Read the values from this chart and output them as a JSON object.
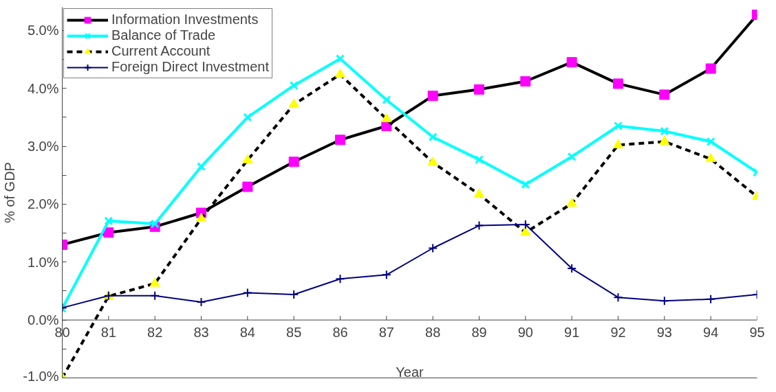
{
  "chart_data": {
    "type": "line",
    "xlabel": "Year",
    "ylabel": "% of GDP",
    "x": [
      80,
      81,
      82,
      83,
      84,
      85,
      86,
      87,
      88,
      89,
      90,
      91,
      92,
      93,
      94,
      95
    ],
    "xlim": [
      80,
      95
    ],
    "xticks": [
      {
        "value": 80,
        "label": "80"
      },
      {
        "value": 81,
        "label": "81"
      },
      {
        "value": 82,
        "label": "82"
      },
      {
        "value": 83,
        "label": "83"
      },
      {
        "value": 84,
        "label": "84"
      },
      {
        "value": 85,
        "label": "85"
      },
      {
        "value": 86,
        "label": "86"
      },
      {
        "value": 87,
        "label": "87"
      },
      {
        "value": 88,
        "label": "88"
      },
      {
        "value": 89,
        "label": "89"
      },
      {
        "value": 90,
        "label": "90"
      },
      {
        "value": 91,
        "label": "91"
      },
      {
        "value": 92,
        "label": "92"
      },
      {
        "value": 93,
        "label": "93"
      },
      {
        "value": 94,
        "label": "94"
      },
      {
        "value": 95,
        "label": "95"
      }
    ],
    "ylim": [
      -1.0,
      5.4
    ],
    "yticks": [
      {
        "value": -1.0,
        "label": "-1.0%"
      },
      {
        "value": -0.5,
        "label": null
      },
      {
        "value": 0.0,
        "label": "0.0%"
      },
      {
        "value": 0.5,
        "label": null
      },
      {
        "value": 1.0,
        "label": "1.0%"
      },
      {
        "value": 1.5,
        "label": null
      },
      {
        "value": 2.0,
        "label": "2.0%"
      },
      {
        "value": 2.5,
        "label": null
      },
      {
        "value": 3.0,
        "label": "3.0%"
      },
      {
        "value": 3.5,
        "label": null
      },
      {
        "value": 4.0,
        "label": "4.0%"
      },
      {
        "value": 4.5,
        "label": null
      },
      {
        "value": 5.0,
        "label": "5.0%"
      }
    ],
    "grid": false,
    "legend": "top left",
    "series": [
      {
        "name": "Information Investments",
        "color": "#000000",
        "colors": [
          "#ff00ff",
          "#ff00ff",
          "#ff00ff",
          "#ff00ff",
          "#ff00ff",
          "#ff00ff",
          "#ff00ff",
          "#ff00ff",
          "#ff00ff",
          "#ff00ff",
          "#ff00ff",
          "#ff00ff",
          "#ff00ff",
          "#ff00ff",
          "#ff00ff",
          "#ff00ff"
        ],
        "marker": "square",
        "line_style": "solid",
        "values": [
          1.3,
          1.51,
          1.61,
          1.85,
          2.3,
          2.73,
          3.11,
          3.35,
          3.87,
          3.98,
          4.12,
          4.45,
          4.08,
          3.89,
          4.34,
          5.27
        ]
      },
      {
        "name": "Balance of Trade",
        "color": "#00ffff",
        "marker": "cross",
        "line_style": "solid",
        "values": [
          0.2,
          1.71,
          1.66,
          2.65,
          3.5,
          4.05,
          4.51,
          3.8,
          3.16,
          2.77,
          2.34,
          2.82,
          3.35,
          3.26,
          3.08,
          2.55
        ]
      },
      {
        "name": "Current Account",
        "color": "#000000",
        "colors": [
          "#ffff00",
          "#ffff00",
          "#ffff00",
          "#ffff00",
          "#ffff00",
          "#ffff00",
          "#ffff00",
          "#ffff00",
          "#ffff00",
          "#ffff00",
          "#ffff00",
          "#ffff00",
          "#ffff00",
          "#ffff00",
          "#ffff00",
          "#ffff00"
        ],
        "marker": "triangle",
        "line_style": "dashed",
        "values": [
          -1.0,
          0.41,
          0.63,
          1.75,
          2.76,
          3.72,
          4.24,
          3.47,
          2.72,
          2.17,
          1.51,
          2.01,
          3.02,
          3.08,
          2.78,
          2.13
        ]
      },
      {
        "name": "Foreign Direct Investment",
        "color": "#000080",
        "marker": "cross",
        "line_style": "solid",
        "values": [
          0.21,
          0.42,
          0.42,
          0.31,
          0.47,
          0.44,
          0.71,
          0.78,
          1.24,
          1.63,
          1.65,
          0.89,
          0.39,
          0.33,
          0.36,
          0.44
        ]
      }
    ]
  }
}
